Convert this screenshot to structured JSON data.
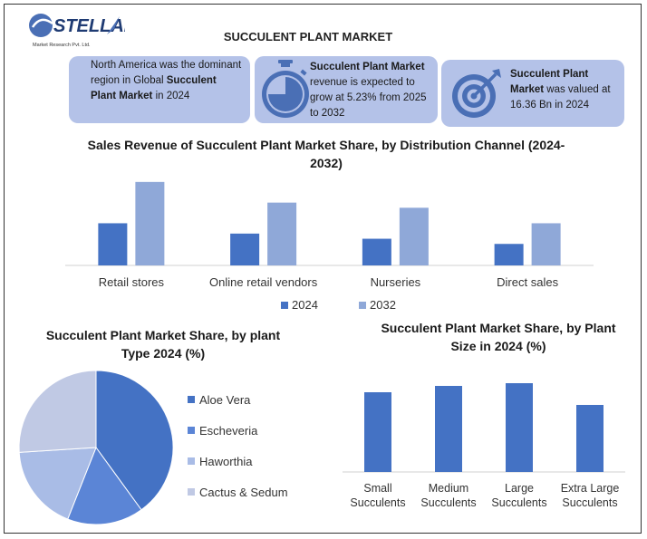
{
  "brand": {
    "name": "STELLAR",
    "tagline": "Market Research Pvt. Ltd."
  },
  "header": {
    "title": "SUCCULENT PLANT MARKET"
  },
  "cards": [
    {
      "pre": "North America was the dominant region in Global ",
      "bold": "Succulent Plant Market",
      "post": " in 2024",
      "icon": "none"
    },
    {
      "pre": "",
      "bold": "Succulent Plant Market",
      "post": " revenue is expected to grow at 5.23% from 2025 to 2032",
      "icon": "stopwatch-icon"
    },
    {
      "pre": "",
      "bold": "Succulent Plant Market",
      "post": " was valued at 16.36 Bn in 2024",
      "icon": "target-icon"
    }
  ],
  "colors": {
    "dark_blue": "#4472c4",
    "light_blue": "#8fa8d8",
    "card_bg": "#b4c2e8",
    "icon_blue": "#4a6fb5"
  },
  "chart_data": [
    {
      "type": "bar",
      "title": "Sales Revenue of Succulent Plant Market Share, by Distribution Channel (2024-2032)",
      "categories": [
        "Retail stores",
        "Online retail vendors",
        "Nurseries",
        "Direct sales"
      ],
      "series": [
        {
          "name": "2024",
          "values": [
            49,
            37,
            31,
            25
          ],
          "color": "#4472c4"
        },
        {
          "name": "2032",
          "values": [
            97,
            73,
            67,
            49
          ],
          "color": "#8fa8d8"
        }
      ],
      "ylim": [
        0,
        100
      ],
      "grid": false,
      "legend": "bottom"
    },
    {
      "type": "pie",
      "title": "Succulent Plant Market Share, by plant Type 2024 (%)",
      "labels": [
        "Aloe Vera",
        "Escheveria",
        "Haworthia",
        "Cactus & Sedum"
      ],
      "values": [
        40,
        16,
        18,
        26
      ],
      "colors": [
        "#4472c4",
        "#5b85d6",
        "#a9bce6",
        "#c0c9e4"
      ],
      "legend": "right"
    },
    {
      "type": "bar",
      "title": "Succulent Plant Market Share, by Plant Size in 2024 (%)",
      "categories": [
        "Small Succulents",
        "Medium Succulents",
        "Large Succulents",
        "Extra Large Succulents"
      ],
      "values": [
        88,
        95,
        98,
        74
      ],
      "color": "#4472c4",
      "ylim": [
        0,
        100
      ],
      "grid": false
    }
  ]
}
